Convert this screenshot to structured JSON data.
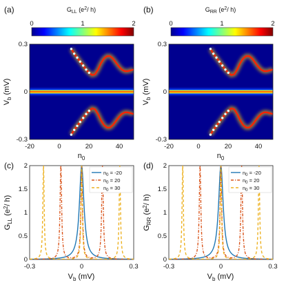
{
  "chart_data": [
    {
      "panel": "(a)",
      "type": "heatmap",
      "colorbar": {
        "title_main": "G",
        "title_sub": "LL",
        "title_unit": " (e",
        "title_sup": "2",
        "title_tail": "/ h)",
        "ticks": [
          "0",
          "1",
          "2"
        ],
        "range": [
          0,
          2
        ],
        "colormap": "jet"
      },
      "xlabel_main": "n",
      "xlabel_sub": "0",
      "ylabel_main": "V",
      "ylabel_sub": "b",
      "ylabel_unit": " (mV)",
      "xlim": [
        -20,
        50
      ],
      "ylim": [
        -0.3,
        0.3
      ],
      "xticks": [
        "-20",
        "0",
        "20",
        "40"
      ],
      "yticks": [
        "-0.3",
        "0",
        "0.3"
      ],
      "curves": [
        {
          "name": "zero-bias peak",
          "x": [
            -20,
            -10,
            0,
            10,
            15,
            20,
            25,
            30,
            35,
            40,
            45,
            50
          ],
          "y": [
            0,
            0,
            0,
            0,
            0,
            0,
            0,
            0,
            0,
            0,
            0,
            0
          ]
        },
        {
          "name": "upper sub-gap state",
          "x": [
            8,
            10,
            12,
            14,
            16,
            18,
            20,
            22,
            24,
            26,
            28,
            30,
            32,
            34,
            36,
            38,
            40,
            42,
            44,
            46,
            48,
            50
          ],
          "y": [
            0.27,
            0.24,
            0.215,
            0.19,
            0.165,
            0.14,
            0.12,
            0.105,
            0.11,
            0.14,
            0.18,
            0.21,
            0.225,
            0.225,
            0.21,
            0.185,
            0.16,
            0.14,
            0.13,
            0.13,
            0.135,
            0.14
          ]
        },
        {
          "name": "lower sub-gap state",
          "x": [
            8,
            10,
            12,
            14,
            16,
            18,
            20,
            22,
            24,
            26,
            28,
            30,
            32,
            34,
            36,
            38,
            40,
            42,
            44,
            46,
            48,
            50
          ],
          "y": [
            -0.27,
            -0.24,
            -0.215,
            -0.19,
            -0.165,
            -0.14,
            -0.12,
            -0.105,
            -0.11,
            -0.14,
            -0.18,
            -0.21,
            -0.225,
            -0.225,
            -0.21,
            -0.185,
            -0.16,
            -0.14,
            -0.13,
            -0.13,
            -0.135,
            -0.14
          ]
        }
      ]
    },
    {
      "panel": "(b)",
      "type": "heatmap",
      "colorbar": {
        "title_main": "G",
        "title_sub": "RR",
        "title_unit": " (e",
        "title_sup": "2",
        "title_tail": "/ h)",
        "ticks": [
          "0",
          "1",
          "2"
        ],
        "range": [
          0,
          2
        ],
        "colormap": "jet"
      },
      "xlabel_main": "n",
      "xlabel_sub": "0",
      "ylabel_main": "V",
      "ylabel_sub": "b",
      "ylabel_unit": " (mV)",
      "xlim": [
        -20,
        50
      ],
      "ylim": [
        -0.3,
        0.3
      ],
      "xticks": [
        "-20",
        "0",
        "20",
        "40"
      ],
      "yticks": [
        "-0.3",
        "0",
        "0.3"
      ],
      "curves": [
        {
          "name": "zero-bias peak",
          "x": [
            -20,
            -10,
            0,
            10,
            15,
            20,
            25,
            30,
            35,
            40,
            45,
            50
          ],
          "y": [
            0,
            0,
            0,
            0,
            0,
            0,
            0,
            0,
            0,
            0,
            0,
            0
          ]
        },
        {
          "name": "upper sub-gap state",
          "x": [
            8,
            10,
            12,
            14,
            16,
            18,
            20,
            22,
            24,
            26,
            28,
            30,
            32,
            34,
            36,
            38,
            40,
            42,
            44,
            46,
            48,
            50
          ],
          "y": [
            0.27,
            0.24,
            0.215,
            0.19,
            0.165,
            0.14,
            0.12,
            0.105,
            0.11,
            0.14,
            0.18,
            0.21,
            0.225,
            0.225,
            0.21,
            0.185,
            0.16,
            0.14,
            0.13,
            0.13,
            0.135,
            0.14
          ]
        },
        {
          "name": "lower sub-gap state",
          "x": [
            8,
            10,
            12,
            14,
            16,
            18,
            20,
            22,
            24,
            26,
            28,
            30,
            32,
            34,
            36,
            38,
            40,
            42,
            44,
            46,
            48,
            50
          ],
          "y": [
            -0.27,
            -0.24,
            -0.215,
            -0.19,
            -0.165,
            -0.14,
            -0.12,
            -0.105,
            -0.11,
            -0.14,
            -0.18,
            -0.21,
            -0.225,
            -0.225,
            -0.21,
            -0.185,
            -0.16,
            -0.14,
            -0.13,
            -0.13,
            -0.135,
            -0.14
          ]
        }
      ]
    },
    {
      "panel": "(c)",
      "type": "line",
      "xlabel_main": "V",
      "xlabel_sub": "b",
      "xlabel_unit": " (mV)",
      "ylabel_main": "G",
      "ylabel_sub": "LL",
      "ylabel_unit": " (e",
      "ylabel_sup": "2",
      "ylabel_tail": "/ h)",
      "xlim": [
        -0.3,
        0.3
      ],
      "ylim": [
        0,
        2
      ],
      "xticks": [
        "-0.3",
        "0",
        "0.3"
      ],
      "yticks": [
        "0",
        "0.5",
        "1",
        "1.5",
        "2"
      ],
      "legend_position": "top-right",
      "series": [
        {
          "legend_main": "n",
          "legend_sub": "0",
          "legend_tail": " = -20",
          "color": "#1f77b4",
          "dash": "",
          "peaks": [
            0
          ],
          "width": 0.016
        },
        {
          "legend_main": "n",
          "legend_sub": "0",
          "legend_tail": " = 20",
          "color": "#d95319",
          "dash": "4,2,1.2,2",
          "peaks": [
            -0.12,
            0,
            0.12
          ],
          "width": 0.0055
        },
        {
          "legend_main": "n",
          "legend_sub": "0",
          "legend_tail": " = 30",
          "color": "#edb120",
          "dash": "4,3",
          "peaks": [
            -0.22,
            0,
            0.22
          ],
          "width": 0.0045
        }
      ]
    },
    {
      "panel": "(d)",
      "type": "line",
      "xlabel_main": "V",
      "xlabel_sub": "b",
      "xlabel_unit": " (mV)",
      "ylabel_main": "G",
      "ylabel_sub": "RR",
      "ylabel_unit": " (e",
      "ylabel_sup": "2",
      "ylabel_tail": "/ h)",
      "xlim": [
        -0.3,
        0.3
      ],
      "ylim": [
        0,
        2
      ],
      "xticks": [
        "-0.3",
        "0",
        "0.3"
      ],
      "yticks": [
        "0",
        "0.5",
        "1",
        "1.5",
        "2"
      ],
      "legend_position": "top-right",
      "series": [
        {
          "legend_main": "n",
          "legend_sub": "0",
          "legend_tail": " = -20",
          "color": "#1f77b4",
          "dash": "",
          "peaks": [
            0
          ],
          "width": 0.016
        },
        {
          "legend_main": "n",
          "legend_sub": "0",
          "legend_tail": " = 20",
          "color": "#d95319",
          "dash": "4,2,1.2,2",
          "peaks": [
            -0.12,
            0,
            0.12
          ],
          "width": 0.0055
        },
        {
          "legend_main": "n",
          "legend_sub": "0",
          "legend_tail": " = 30",
          "color": "#edb120",
          "dash": "4,3",
          "peaks": [
            -0.22,
            0,
            0.22
          ],
          "width": 0.0045
        }
      ]
    }
  ]
}
